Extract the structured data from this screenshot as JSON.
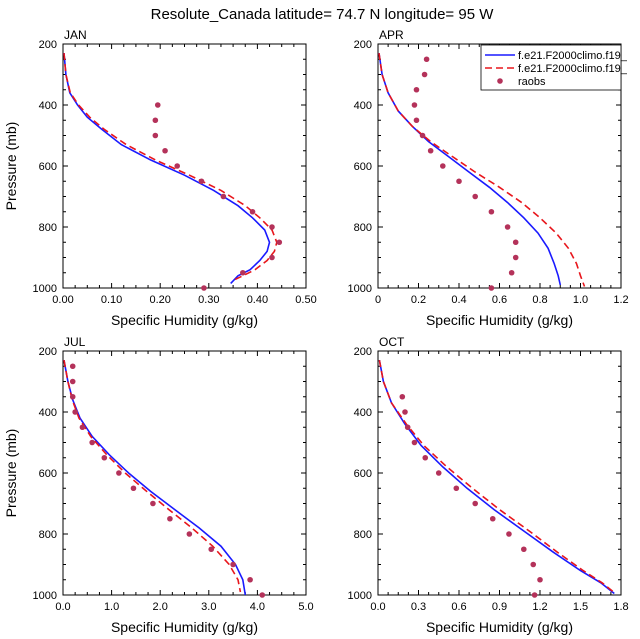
{
  "figure": {
    "title": "Resolute_Canada  latitude= 74.7 N longitude= 95 W"
  },
  "legend": {
    "placement": "top-right of APR panel",
    "entries": [
      {
        "label": "f.e21.F2000climo.f19_",
        "style": "solid",
        "color": "#1a1aff"
      },
      {
        "label": "f.e21.F2000climo.f19_",
        "style": "dashed",
        "color": "#e8161c"
      },
      {
        "label": "raobs",
        "style": "dots",
        "color": "#b4325a"
      }
    ]
  },
  "colors": {
    "model1": "#1a1aff",
    "model2": "#e8161c",
    "raobs": "#b4325a",
    "axis": "#000000"
  },
  "chart_data": [
    {
      "type": "line",
      "panel_label": "JAN",
      "xlabel": "Specific Humidity (g/kg)",
      "ylabel": "Pressure (mb)",
      "xlim": [
        0,
        0.5
      ],
      "ylim": [
        1000,
        200
      ],
      "xticks": [
        "0.00",
        "0.10",
        "0.20",
        "0.30",
        "0.40",
        "0.50"
      ],
      "xtick_values": [
        0,
        0.1,
        0.2,
        0.3,
        0.4,
        0.5
      ],
      "yticks": [
        "200",
        "400",
        "600",
        "800",
        "1000"
      ],
      "ytick_values": [
        200,
        400,
        600,
        800,
        1000
      ],
      "y_inverted": true,
      "series": [
        {
          "name": "f.e21.F2000climo.f19_",
          "values": [
            [
              0.002,
              230
            ],
            [
              0.006,
              300
            ],
            [
              0.014,
              360
            ],
            [
              0.03,
              400
            ],
            [
              0.05,
              440
            ],
            [
              0.08,
              480
            ],
            [
              0.12,
              530
            ],
            [
              0.18,
              580
            ],
            [
              0.25,
              630
            ],
            [
              0.31,
              680
            ],
            [
              0.36,
              730
            ],
            [
              0.39,
              770
            ],
            [
              0.415,
              810
            ],
            [
              0.425,
              850
            ],
            [
              0.42,
              880
            ],
            [
              0.405,
              910
            ],
            [
              0.385,
              940
            ],
            [
              0.36,
              960
            ],
            [
              0.345,
              985
            ]
          ]
        },
        {
          "name": "f.e21.F2000climo.f19_",
          "values": [
            [
              0.002,
              230
            ],
            [
              0.006,
              300
            ],
            [
              0.015,
              360
            ],
            [
              0.032,
              400
            ],
            [
              0.055,
              440
            ],
            [
              0.085,
              480
            ],
            [
              0.13,
              530
            ],
            [
              0.19,
              580
            ],
            [
              0.26,
              630
            ],
            [
              0.325,
              680
            ],
            [
              0.375,
              730
            ],
            [
              0.405,
              770
            ],
            [
              0.43,
              810
            ],
            [
              0.44,
              850
            ],
            [
              0.435,
              880
            ],
            [
              0.42,
              910
            ],
            [
              0.395,
              940
            ],
            [
              0.37,
              960
            ],
            [
              0.35,
              975
            ]
          ]
        },
        {
          "name": "raobs",
          "values": [
            [
              0.195,
              400
            ],
            [
              0.19,
              450
            ],
            [
              0.19,
              500
            ],
            [
              0.21,
              550
            ],
            [
              0.235,
              600
            ],
            [
              0.285,
              650
            ],
            [
              0.33,
              700
            ],
            [
              0.39,
              750
            ],
            [
              0.43,
              800
            ],
            [
              0.445,
              850
            ],
            [
              0.43,
              900
            ],
            [
              0.37,
              950
            ],
            [
              0.29,
              1000
            ]
          ]
        }
      ]
    },
    {
      "type": "line",
      "panel_label": "APR",
      "xlabel": "Specific Humidity (g/kg)",
      "ylabel": "",
      "xlim": [
        0,
        1.2
      ],
      "ylim": [
        1000,
        200
      ],
      "xticks": [
        "0",
        "0.2",
        "0.4",
        "0.6",
        "0.8",
        "1.0",
        "1.2"
      ],
      "xtick_values": [
        0,
        0.2,
        0.4,
        0.6,
        0.8,
        1.0,
        1.2
      ],
      "yticks": [
        "200",
        "400",
        "600",
        "800",
        "1000"
      ],
      "ytick_values": [
        200,
        400,
        600,
        800,
        1000
      ],
      "y_inverted": true,
      "series": [
        {
          "name": "f.e21.F2000climo.f19_",
          "values": [
            [
              0.005,
              230
            ],
            [
              0.02,
              300
            ],
            [
              0.05,
              360
            ],
            [
              0.1,
              420
            ],
            [
              0.17,
              470
            ],
            [
              0.25,
              520
            ],
            [
              0.35,
              570
            ],
            [
              0.45,
              620
            ],
            [
              0.55,
              670
            ],
            [
              0.64,
              720
            ],
            [
              0.72,
              770
            ],
            [
              0.79,
              820
            ],
            [
              0.84,
              870
            ],
            [
              0.87,
              920
            ],
            [
              0.89,
              960
            ],
            [
              0.9,
              990
            ]
          ]
        },
        {
          "name": "f.e21.F2000climo.f19_",
          "values": [
            [
              0.005,
              230
            ],
            [
              0.02,
              300
            ],
            [
              0.05,
              360
            ],
            [
              0.1,
              420
            ],
            [
              0.17,
              470
            ],
            [
              0.26,
              520
            ],
            [
              0.37,
              570
            ],
            [
              0.48,
              620
            ],
            [
              0.6,
              670
            ],
            [
              0.71,
              720
            ],
            [
              0.8,
              770
            ],
            [
              0.88,
              820
            ],
            [
              0.94,
              870
            ],
            [
              0.98,
              920
            ],
            [
              1.0,
              960
            ],
            [
              1.02,
              995
            ]
          ]
        },
        {
          "name": "raobs",
          "values": [
            [
              0.24,
              250
            ],
            [
              0.23,
              300
            ],
            [
              0.19,
              350
            ],
            [
              0.18,
              400
            ],
            [
              0.19,
              450
            ],
            [
              0.22,
              500
            ],
            [
              0.26,
              550
            ],
            [
              0.32,
              600
            ],
            [
              0.4,
              650
            ],
            [
              0.48,
              700
            ],
            [
              0.56,
              750
            ],
            [
              0.64,
              800
            ],
            [
              0.68,
              850
            ],
            [
              0.68,
              900
            ],
            [
              0.66,
              950
            ],
            [
              0.56,
              1000
            ]
          ]
        }
      ]
    },
    {
      "type": "line",
      "panel_label": "JUL",
      "xlabel": "Specific Humidity (g/kg)",
      "ylabel": "Pressure (mb)",
      "xlim": [
        0,
        5.0
      ],
      "ylim": [
        1000,
        200
      ],
      "xticks": [
        "0.0",
        "1.0",
        "2.0",
        "3.0",
        "4.0",
        "5.0"
      ],
      "xtick_values": [
        0,
        1,
        2,
        3,
        4,
        5
      ],
      "yticks": [
        "200",
        "400",
        "600",
        "800",
        "1000"
      ],
      "ytick_values": [
        200,
        400,
        600,
        800,
        1000
      ],
      "y_inverted": true,
      "series": [
        {
          "name": "f.e21.F2000climo.f19_",
          "values": [
            [
              0.02,
              230
            ],
            [
              0.1,
              300
            ],
            [
              0.2,
              360
            ],
            [
              0.35,
              420
            ],
            [
              0.6,
              480
            ],
            [
              0.95,
              540
            ],
            [
              1.35,
              600
            ],
            [
              1.8,
              660
            ],
            [
              2.3,
              720
            ],
            [
              2.8,
              780
            ],
            [
              3.25,
              840
            ],
            [
              3.55,
              900
            ],
            [
              3.7,
              950
            ],
            [
              3.75,
              1000
            ]
          ]
        },
        {
          "name": "f.e21.F2000climo.f19_",
          "values": [
            [
              0.02,
              230
            ],
            [
              0.1,
              300
            ],
            [
              0.19,
              360
            ],
            [
              0.33,
              420
            ],
            [
              0.57,
              480
            ],
            [
              0.9,
              540
            ],
            [
              1.28,
              600
            ],
            [
              1.72,
              660
            ],
            [
              2.18,
              720
            ],
            [
              2.65,
              780
            ],
            [
              3.08,
              840
            ],
            [
              3.42,
              900
            ],
            [
              3.6,
              950
            ],
            [
              3.65,
              990
            ]
          ]
        },
        {
          "name": "raobs",
          "values": [
            [
              0.2,
              250
            ],
            [
              0.2,
              300
            ],
            [
              0.2,
              350
            ],
            [
              0.25,
              400
            ],
            [
              0.4,
              450
            ],
            [
              0.6,
              500
            ],
            [
              0.85,
              550
            ],
            [
              1.15,
              600
            ],
            [
              1.45,
              650
            ],
            [
              1.85,
              700
            ],
            [
              2.2,
              750
            ],
            [
              2.6,
              800
            ],
            [
              3.05,
              850
            ],
            [
              3.5,
              900
            ],
            [
              3.85,
              950
            ],
            [
              4.1,
              1000
            ]
          ]
        }
      ]
    },
    {
      "type": "line",
      "panel_label": "OCT",
      "xlabel": "Specific Humidity (g/kg)",
      "ylabel": "",
      "xlim": [
        0,
        1.8
      ],
      "ylim": [
        1000,
        200
      ],
      "xticks": [
        "0.0",
        "0.3",
        "0.6",
        "0.9",
        "1.2",
        "1.5",
        "1.8"
      ],
      "xtick_values": [
        0,
        0.3,
        0.6,
        0.9,
        1.2,
        1.5,
        1.8
      ],
      "yticks": [
        "200",
        "400",
        "600",
        "800",
        "1000"
      ],
      "ytick_values": [
        200,
        400,
        600,
        800,
        1000
      ],
      "y_inverted": true,
      "series": [
        {
          "name": "f.e21.F2000climo.f19_",
          "values": [
            [
              0.01,
              230
            ],
            [
              0.04,
              300
            ],
            [
              0.1,
              370
            ],
            [
              0.2,
              440
            ],
            [
              0.32,
              510
            ],
            [
              0.48,
              580
            ],
            [
              0.66,
              650
            ],
            [
              0.86,
              720
            ],
            [
              1.08,
              790
            ],
            [
              1.3,
              860
            ],
            [
              1.5,
              920
            ],
            [
              1.65,
              960
            ],
            [
              1.75,
              995
            ]
          ]
        },
        {
          "name": "f.e21.F2000climo.f19_",
          "values": [
            [
              0.01,
              230
            ],
            [
              0.04,
              300
            ],
            [
              0.1,
              370
            ],
            [
              0.21,
              440
            ],
            [
              0.34,
              510
            ],
            [
              0.51,
              580
            ],
            [
              0.7,
              650
            ],
            [
              0.9,
              720
            ],
            [
              1.12,
              790
            ],
            [
              1.33,
              860
            ],
            [
              1.52,
              920
            ],
            [
              1.66,
              960
            ],
            [
              1.75,
              992
            ]
          ]
        },
        {
          "name": "raobs",
          "values": [
            [
              0.18,
              350
            ],
            [
              0.2,
              400
            ],
            [
              0.22,
              450
            ],
            [
              0.27,
              500
            ],
            [
              0.35,
              550
            ],
            [
              0.45,
              600
            ],
            [
              0.58,
              650
            ],
            [
              0.72,
              700
            ],
            [
              0.85,
              750
            ],
            [
              0.97,
              800
            ],
            [
              1.08,
              850
            ],
            [
              1.15,
              900
            ],
            [
              1.2,
              950
            ],
            [
              1.16,
              1000
            ]
          ]
        }
      ]
    }
  ]
}
